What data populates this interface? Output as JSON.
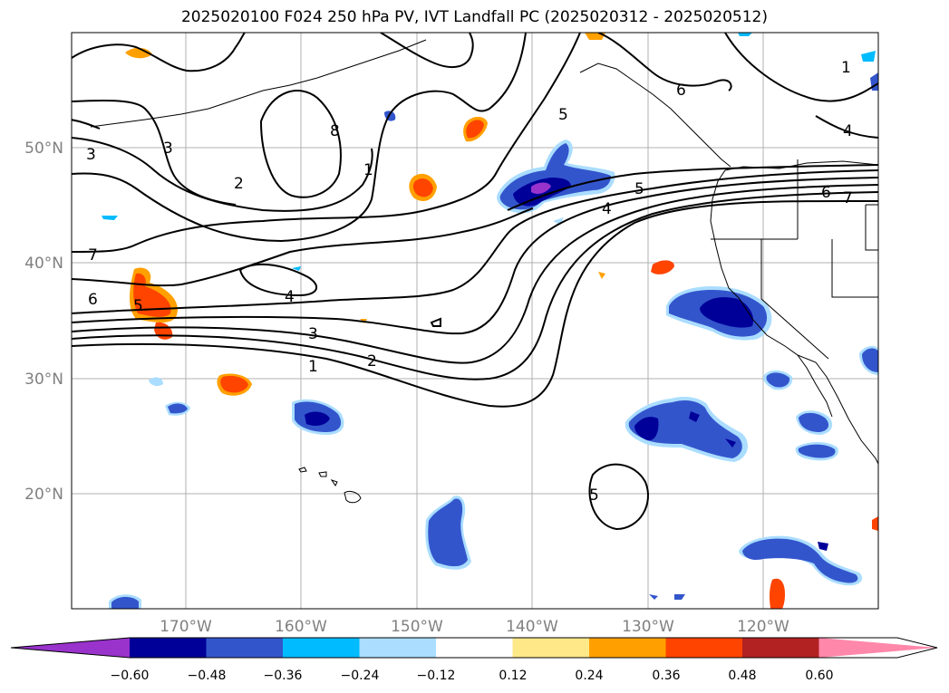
{
  "title": "2025020100 F024 250 hPa PV, IVT Landfall PC (2025020312 - 2025020512)",
  "lat_labels": [
    "50°N",
    "40°N",
    "30°N",
    "20°N"
  ],
  "lon_labels": [
    "170°W",
    "160°W",
    "150°W",
    "140°W",
    "130°W",
    "120°W"
  ],
  "colorbar": {
    "ticks": [
      "−0.60",
      "−0.48",
      "−0.36",
      "−0.24",
      "−0.12",
      "0.12",
      "0.24",
      "0.36",
      "0.48",
      "0.60"
    ],
    "colors": [
      "#9933cc",
      "#000099",
      "#3355cc",
      "#00bbff",
      "#aaddff",
      "#ffffff",
      "#ffe888",
      "#ffa000",
      "#ff4400",
      "#b22222",
      "#ff88aa"
    ]
  },
  "contour_labels": [
    "1",
    "2",
    "3",
    "4",
    "5",
    "6",
    "7",
    "8",
    "1",
    "2",
    "3",
    "3",
    "4",
    "5",
    "5",
    "6",
    "7",
    "1",
    "4",
    "5",
    "6",
    "6",
    "1"
  ],
  "colors": {
    "purple": "#9933cc",
    "navy": "#000099",
    "blue": "#3355cc",
    "cyan": "#00bbff",
    "light": "#aaddff",
    "white": "#ffffff",
    "yellow": "#ffe888",
    "orange": "#ffa000",
    "red_orange": "#ff4400",
    "darkred": "#b22222",
    "pink": "#ff88aa"
  }
}
